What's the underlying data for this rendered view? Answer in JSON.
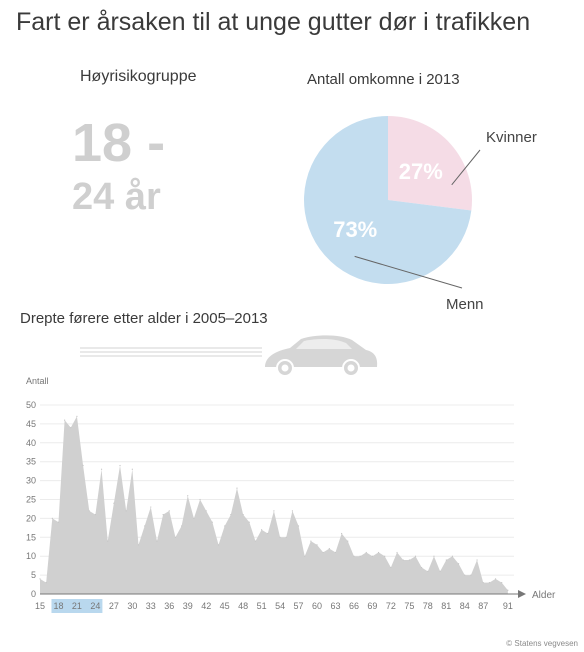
{
  "title": "Fart er årsaken til at unge gutter dør i trafikken",
  "risk_group": {
    "label": "Høyrisikogruppe",
    "range_top": "18 -",
    "range_bottom": "24 år"
  },
  "pie": {
    "title": "Antall omkomne i 2013",
    "slices": [
      {
        "label": "Kvinner",
        "value": 27,
        "value_label": "27%",
        "color": "#f5dce6"
      },
      {
        "label": "Menn",
        "value": 73,
        "value_label": "73%",
        "color": "#c3ddef"
      }
    ]
  },
  "colors": {
    "area": "#d0d0d0",
    "highlight": "#b9d8ee",
    "axis_text": "#777777",
    "car": "#d6d6d6"
  },
  "icons": [
    "car-icon"
  ],
  "chart_data": [
    {
      "type": "pie",
      "title": "Antall omkomne i 2013",
      "categories": [
        "Kvinner",
        "Menn"
      ],
      "values": [
        27,
        73
      ],
      "value_labels": [
        "27%",
        "73%"
      ]
    },
    {
      "type": "area",
      "title": "Drepte førere etter alder i 2005–2013",
      "xlabel": "Alder",
      "ylabel": "Antall",
      "xlim": [
        15,
        92
      ],
      "ylim": [
        0,
        50
      ],
      "y_ticks": [
        0,
        5,
        10,
        15,
        20,
        25,
        30,
        35,
        40,
        45,
        50
      ],
      "x_ticks": [
        15,
        18,
        21,
        24,
        27,
        30,
        33,
        36,
        39,
        42,
        45,
        48,
        51,
        54,
        57,
        60,
        63,
        66,
        69,
        72,
        75,
        78,
        81,
        84,
        87,
        91
      ],
      "highlight": {
        "from": 18,
        "to": 24
      },
      "grid": true,
      "series": [
        {
          "x": [
            15,
            16,
            17,
            18,
            19,
            20,
            21,
            22,
            23,
            24,
            25,
            26,
            27,
            28,
            29,
            30,
            31,
            32,
            33,
            34,
            35,
            36,
            37,
            38,
            39,
            40,
            41,
            42,
            43,
            44,
            45,
            46,
            47,
            48,
            49,
            50,
            51,
            52,
            53,
            54,
            55,
            56,
            57,
            58,
            59,
            60,
            61,
            62,
            63,
            64,
            65,
            66,
            67,
            68,
            69,
            70,
            71,
            72,
            73,
            74,
            75,
            76,
            77,
            78,
            79,
            80,
            81,
            82,
            83,
            84,
            85,
            86,
            87,
            88,
            89,
            90,
            91
          ],
          "values": [
            4,
            3,
            20,
            19,
            46,
            44,
            47,
            34,
            22,
            21,
            33,
            14,
            24,
            34,
            22,
            33,
            13,
            18,
            23,
            14,
            21,
            22,
            15,
            18,
            26,
            20,
            25,
            22,
            19,
            13,
            18,
            21,
            28,
            21,
            19,
            14,
            17,
            16,
            22,
            15,
            15,
            22,
            18,
            10,
            14,
            13,
            11,
            12,
            11,
            16,
            14,
            10,
            10,
            11,
            10,
            11,
            10,
            7,
            11,
            9,
            9,
            10,
            7,
            6,
            10,
            6,
            9,
            10,
            8,
            5,
            5,
            9,
            3,
            3,
            4,
            3,
            1
          ]
        }
      ]
    }
  ],
  "chart_text": {
    "title": "Drepte førere etter alder i 2005–2013",
    "ylabel": "Antall",
    "xlabel": "Alder",
    "credit": "© Statens vegvesen"
  }
}
